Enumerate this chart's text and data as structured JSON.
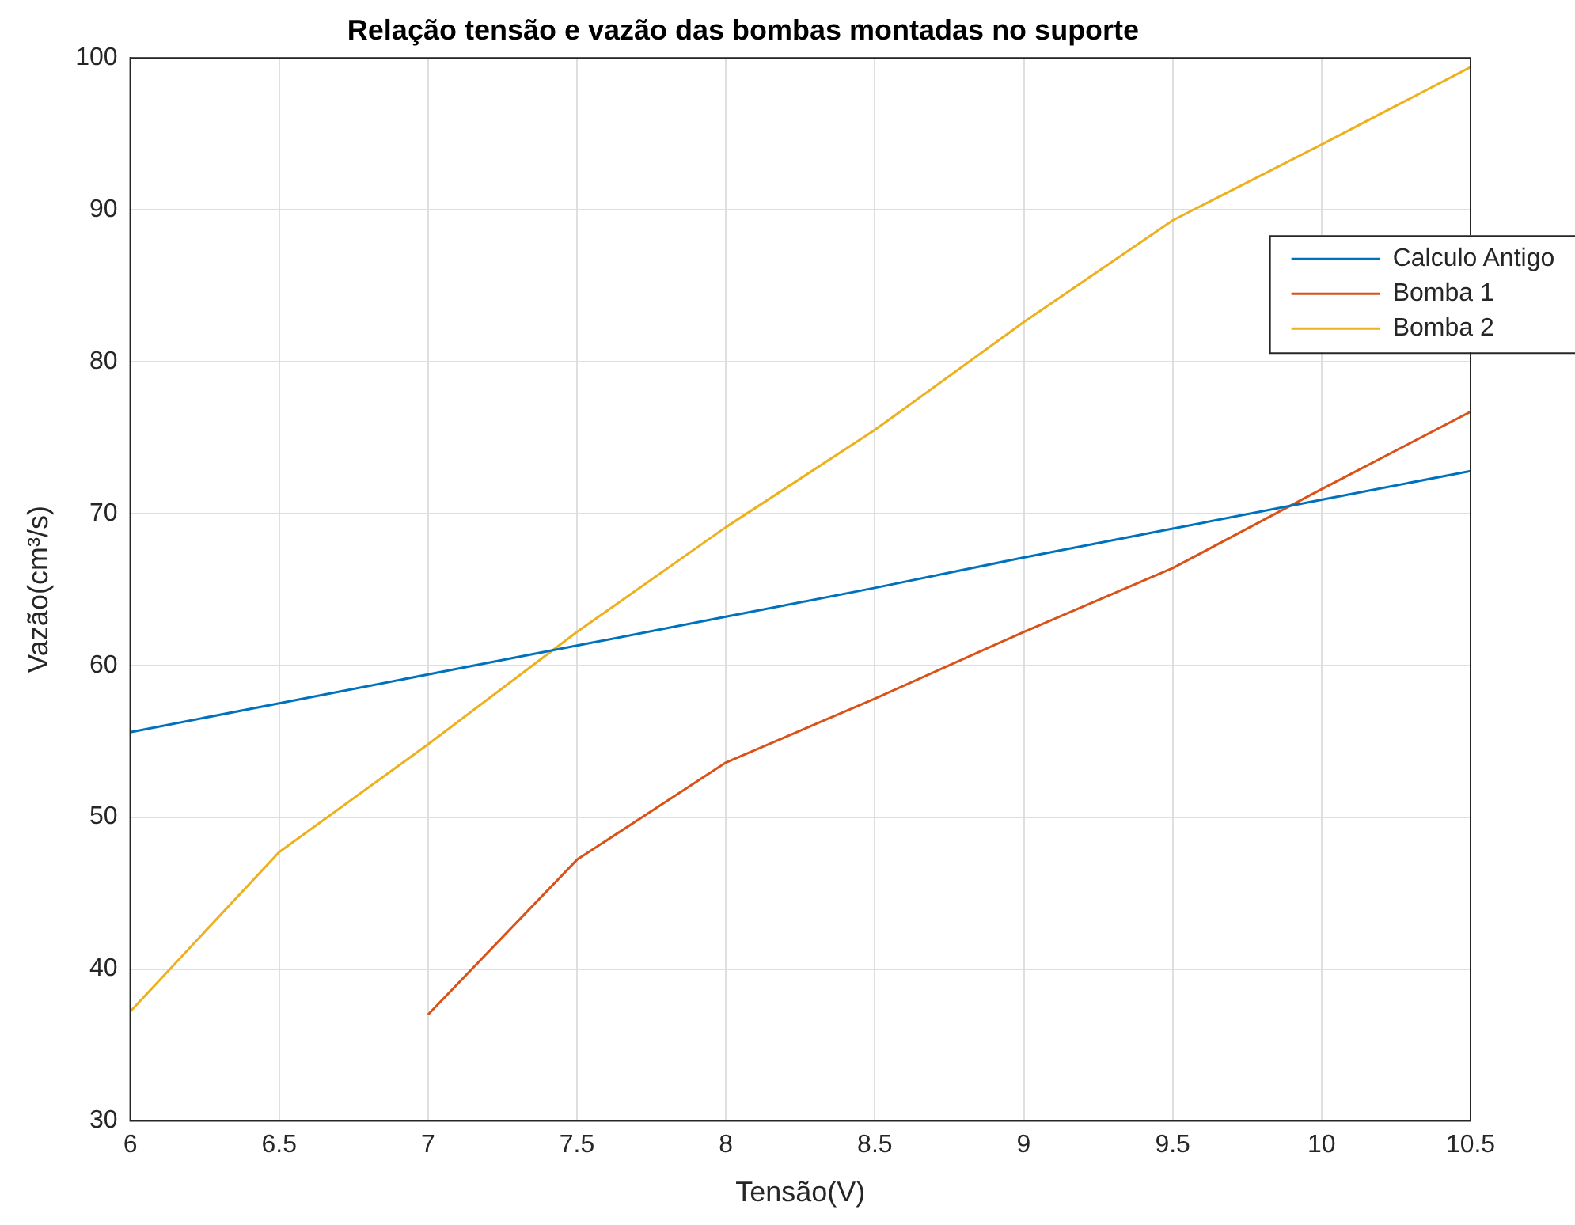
{
  "chart_data": {
    "type": "line",
    "title": "Relação tensão e vazão das bombas montadas no suporte",
    "xlabel": "Tensão(V)",
    "ylabel": "Vazão(cm³/s)",
    "xlim": [
      6,
      10.5
    ],
    "xticks": [
      6,
      6.5,
      7,
      7.5,
      8,
      8.5,
      9,
      9.5,
      10,
      10.5
    ],
    "ylim": [
      30,
      100
    ],
    "yticks": [
      30,
      40,
      50,
      60,
      70,
      80,
      90,
      100
    ],
    "grid": true,
    "legend": "top right",
    "series": [
      {
        "name": "Calculo Antigo",
        "color": "#0072bd",
        "x": [
          6,
          6.5,
          7,
          7.5,
          8,
          8.5,
          9,
          9.5,
          10,
          10.5
        ],
        "values": [
          55.6,
          57.5,
          59.4,
          61.3,
          63.2,
          65.1,
          67.1,
          69.0,
          70.9,
          72.8
        ]
      },
      {
        "name": "Bomba 1",
        "color": "#d95319",
        "x": [
          7,
          7.5,
          8,
          8.5,
          9,
          9.5,
          10,
          10.5
        ],
        "values": [
          37,
          47.2,
          53.6,
          57.8,
          62.2,
          66.4,
          71.6,
          76.7
        ]
      },
      {
        "name": "Bomba 2",
        "color": "#edb120",
        "x": [
          6,
          6.5,
          7,
          7.5,
          8,
          8.5,
          9,
          9.5,
          10,
          10.5
        ],
        "values": [
          37.2,
          47.7,
          54.8,
          62.2,
          69.1,
          75.5,
          82.6,
          89.3,
          94.3,
          99.4
        ]
      }
    ]
  }
}
